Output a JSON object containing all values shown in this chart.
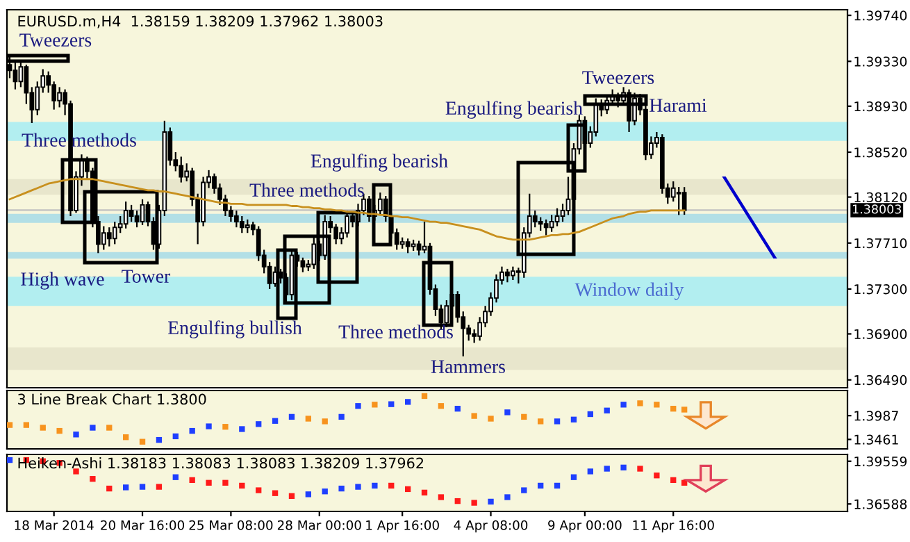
{
  "chart_data": [
    {
      "type": "candlestick",
      "title": "EURUSD.m,H4  1.38159 1.38209 1.37962 1.38003",
      "categories": [
        null,
        null,
        null,
        null,
        null,
        null,
        null,
        null,
        null,
        null,
        null,
        null,
        null,
        null,
        null,
        null,
        null,
        null,
        null,
        null,
        null,
        null,
        null,
        null,
        null,
        null,
        null,
        null,
        null,
        null,
        null,
        null,
        null,
        null,
        null,
        null,
        null,
        null,
        null,
        null,
        null,
        null,
        null,
        null,
        null,
        null,
        null,
        null,
        null,
        null,
        null,
        null,
        null,
        null,
        null,
        null,
        null,
        null,
        null,
        null,
        null,
        null,
        null,
        null,
        null,
        null,
        null,
        null,
        null,
        null,
        null,
        null,
        null,
        null,
        null,
        null,
        null,
        null,
        null,
        null,
        null,
        null,
        null,
        null,
        null,
        null,
        null,
        null,
        null,
        null,
        null,
        null,
        null,
        null,
        null,
        null,
        null,
        null,
        null,
        null,
        null,
        null,
        null,
        null,
        null,
        null,
        null,
        null,
        null,
        null,
        null,
        null,
        null,
        null,
        null,
        null,
        null,
        null,
        null,
        null,
        null,
        null,
        null,
        null,
        null,
        null,
        null,
        null,
        null,
        null,
        null,
        null,
        null,
        null,
        null,
        null,
        null,
        null,
        null,
        null,
        null,
        null,
        null,
        null,
        null,
        null,
        null,
        null,
        null,
        null,
        null,
        null
      ],
      "color": "#000000",
      "ohlc": [
        [
          1.393,
          1.3938,
          1.3918,
          1.3925
        ],
        [
          1.3925,
          1.3932,
          1.3908,
          1.3915
        ],
        [
          1.3915,
          1.3933,
          1.391,
          1.3928
        ],
        [
          1.3928,
          1.393,
          1.3895,
          1.3905
        ],
        [
          1.3905,
          1.391,
          1.3878,
          1.389
        ],
        [
          1.389,
          1.3915,
          1.3885,
          1.391
        ],
        [
          1.391,
          1.3926,
          1.3905,
          1.392
        ],
        [
          1.392,
          1.3924,
          1.3905,
          1.3912
        ],
        [
          1.3912,
          1.3915,
          1.389,
          1.3898
        ],
        [
          1.3898,
          1.391,
          1.3892,
          1.3905
        ],
        [
          1.3905,
          1.3908,
          1.3885,
          1.3895
        ],
        [
          1.3895,
          1.3898,
          1.3795,
          1.38
        ],
        [
          1.38,
          1.3835,
          1.3798,
          1.383
        ],
        [
          1.383,
          1.385,
          1.3822,
          1.3845
        ],
        [
          1.3845,
          1.3848,
          1.3828,
          1.3835
        ],
        [
          1.3835,
          1.3838,
          1.3785,
          1.379
        ],
        [
          1.379,
          1.3795,
          1.3762,
          1.377
        ],
        [
          1.377,
          1.3786,
          1.3765,
          1.378
        ],
        [
          1.378,
          1.3785,
          1.3768,
          1.3775
        ],
        [
          1.3775,
          1.379,
          1.377,
          1.3785
        ],
        [
          1.3785,
          1.3795,
          1.378,
          1.3788
        ],
        [
          1.3788,
          1.3808,
          1.3784,
          1.38
        ],
        [
          1.38,
          1.3805,
          1.379,
          1.3795
        ],
        [
          1.3795,
          1.38,
          1.3785,
          1.379
        ],
        [
          1.379,
          1.381,
          1.3787,
          1.3805
        ],
        [
          1.3805,
          1.3808,
          1.3786,
          1.379
        ],
        [
          1.379,
          1.3794,
          1.3765,
          1.377
        ],
        [
          1.377,
          1.3805,
          1.3766,
          1.38
        ],
        [
          1.38,
          1.388,
          1.3795,
          1.387
        ],
        [
          1.387,
          1.3874,
          1.384,
          1.3845
        ],
        [
          1.3845,
          1.3852,
          1.3835,
          1.384
        ],
        [
          1.384,
          1.3848,
          1.3825,
          1.383
        ],
        [
          1.383,
          1.3842,
          1.3826,
          1.3835
        ],
        [
          1.3835,
          1.3838,
          1.3804,
          1.381
        ],
        [
          1.381,
          1.3815,
          1.377,
          1.379
        ],
        [
          1.379,
          1.383,
          1.3786,
          1.3825
        ],
        [
          1.3825,
          1.3836,
          1.382,
          1.383
        ],
        [
          1.383,
          1.3833,
          1.3815,
          1.382
        ],
        [
          1.382,
          1.3824,
          1.3805,
          1.381
        ],
        [
          1.381,
          1.3814,
          1.3795,
          1.38
        ],
        [
          1.38,
          1.3804,
          1.379,
          1.3795
        ],
        [
          1.3795,
          1.38,
          1.3785,
          1.379
        ],
        [
          1.379,
          1.3795,
          1.378,
          1.3785
        ],
        [
          1.3785,
          1.3792,
          1.378,
          1.3787
        ],
        [
          1.3787,
          1.379,
          1.3778,
          1.3783
        ],
        [
          1.3783,
          1.3786,
          1.3755,
          1.376
        ],
        [
          1.376,
          1.3765,
          1.3744,
          1.375
        ],
        [
          1.375,
          1.3754,
          1.373,
          1.3735
        ],
        [
          1.3735,
          1.375,
          1.3732,
          1.3745
        ],
        [
          1.3745,
          1.3748,
          1.3735,
          1.374
        ],
        [
          1.374,
          1.3744,
          1.3718,
          1.3725
        ],
        [
          1.3725,
          1.3765,
          1.372,
          1.376
        ],
        [
          1.376,
          1.3763,
          1.375,
          1.3755
        ],
        [
          1.3755,
          1.3758,
          1.3745,
          1.375
        ],
        [
          1.375,
          1.3756,
          1.3746,
          1.3752
        ],
        [
          1.3752,
          1.3776,
          1.3748,
          1.377
        ],
        [
          1.377,
          1.3773,
          1.3755,
          1.376
        ],
        [
          1.376,
          1.3796,
          1.3756,
          1.379
        ],
        [
          1.379,
          1.3795,
          1.378,
          1.3785
        ],
        [
          1.3785,
          1.3788,
          1.377,
          1.3775
        ],
        [
          1.3775,
          1.3785,
          1.377,
          1.378
        ],
        [
          1.378,
          1.38,
          1.3776,
          1.3795
        ],
        [
          1.3795,
          1.3798,
          1.3785,
          1.379
        ],
        [
          1.379,
          1.3806,
          1.3786,
          1.38
        ],
        [
          1.38,
          1.3815,
          1.3796,
          1.381
        ],
        [
          1.381,
          1.3813,
          1.379,
          1.3795
        ],
        [
          1.3795,
          1.3805,
          1.3791,
          1.38
        ],
        [
          1.38,
          1.3816,
          1.3796,
          1.381
        ],
        [
          1.381,
          1.3813,
          1.379,
          1.3795
        ],
        [
          1.3795,
          1.3798,
          1.3775,
          1.378
        ],
        [
          1.378,
          1.3784,
          1.3765,
          1.377
        ],
        [
          1.377,
          1.3776,
          1.3766,
          1.3772
        ],
        [
          1.3772,
          1.3775,
          1.3762,
          1.3768
        ],
        [
          1.3768,
          1.3774,
          1.3764,
          1.377
        ],
        [
          1.377,
          1.3773,
          1.376,
          1.3765
        ],
        [
          1.3765,
          1.379,
          1.3762,
          1.3768
        ],
        [
          1.3768,
          1.3771,
          1.3725,
          1.373
        ],
        [
          1.373,
          1.3734,
          1.3706,
          1.3712
        ],
        [
          1.3712,
          1.3716,
          1.3694,
          1.37
        ],
        [
          1.37,
          1.372,
          1.3696,
          1.3715
        ],
        [
          1.3715,
          1.373,
          1.371,
          1.3725
        ],
        [
          1.3725,
          1.3728,
          1.37,
          1.3705
        ],
        [
          1.3705,
          1.371,
          1.367,
          1.3695
        ],
        [
          1.3695,
          1.3698,
          1.3684,
          1.369
        ],
        [
          1.369,
          1.3694,
          1.3682,
          1.3688
        ],
        [
          1.3688,
          1.3705,
          1.3684,
          1.37
        ],
        [
          1.37,
          1.3715,
          1.3696,
          1.371
        ],
        [
          1.371,
          1.3727,
          1.3706,
          1.3722
        ],
        [
          1.3722,
          1.3743,
          1.3718,
          1.3738
        ],
        [
          1.3738,
          1.375,
          1.3734,
          1.3745
        ],
        [
          1.3745,
          1.3748,
          1.3736,
          1.3742
        ],
        [
          1.3742,
          1.375,
          1.3738,
          1.3746
        ],
        [
          1.3746,
          1.3749,
          1.3735,
          1.3745
        ],
        [
          1.3745,
          1.3785,
          1.374,
          1.378
        ],
        [
          1.378,
          1.3815,
          1.3776,
          1.3795
        ],
        [
          1.3795,
          1.38,
          1.3785,
          1.379
        ],
        [
          1.379,
          1.3794,
          1.3782,
          1.3788
        ],
        [
          1.3788,
          1.3792,
          1.3778,
          1.3785
        ],
        [
          1.3785,
          1.3796,
          1.3781,
          1.379
        ],
        [
          1.379,
          1.3802,
          1.3786,
          1.3795
        ],
        [
          1.3795,
          1.3806,
          1.379,
          1.38
        ],
        [
          1.38,
          1.383,
          1.3796,
          1.381
        ],
        [
          1.381,
          1.386,
          1.3806,
          1.3855
        ],
        [
          1.3855,
          1.3885,
          1.385,
          1.388
        ],
        [
          1.388,
          1.3884,
          1.3855,
          1.386
        ],
        [
          1.386,
          1.3875,
          1.3856,
          1.387
        ],
        [
          1.387,
          1.39,
          1.3866,
          1.3895
        ],
        [
          1.3895,
          1.3899,
          1.3884,
          1.389
        ],
        [
          1.389,
          1.3903,
          1.3886,
          1.3898
        ],
        [
          1.3898,
          1.3908,
          1.3894,
          1.3902
        ],
        [
          1.3902,
          1.3905,
          1.3892,
          1.3898
        ],
        [
          1.3898,
          1.391,
          1.3894,
          1.3905
        ],
        [
          1.3905,
          1.3908,
          1.387,
          1.388
        ],
        [
          1.388,
          1.3905,
          1.3876,
          1.39
        ],
        [
          1.39,
          1.3904,
          1.3885,
          1.389
        ],
        [
          1.389,
          1.3894,
          1.3845,
          1.385
        ],
        [
          1.385,
          1.3866,
          1.3846,
          1.386
        ],
        [
          1.386,
          1.387,
          1.3856,
          1.3865
        ],
        [
          1.3865,
          1.3868,
          1.3815,
          1.382
        ],
        [
          1.382,
          1.3824,
          1.3806,
          1.3812
        ],
        [
          1.3812,
          1.3826,
          1.3808,
          1.382
        ],
        [
          1.3815,
          1.3821,
          1.3796,
          1.3816
        ],
        [
          1.38159,
          1.38209,
          1.37962,
          1.38003
        ],
        null,
        null,
        null,
        null,
        null,
        null,
        null,
        null,
        null,
        null,
        null,
        null,
        null,
        null,
        null,
        null,
        null,
        null,
        null,
        null,
        null,
        null,
        null,
        null,
        null,
        null,
        null,
        null,
        null
      ],
      "series": [
        {
          "type": "line",
          "color": "#c8901e",
          "values": [
            1.381,
            1.3812,
            1.3814,
            1.3816,
            1.3818,
            1.382,
            1.3822,
            1.3824,
            1.3825,
            1.3826,
            1.3827,
            1.3828,
            1.3828,
            1.3828,
            1.3828,
            1.3828,
            1.3827,
            1.3826,
            1.3825,
            1.3824,
            1.3823,
            1.3822,
            1.3821,
            1.382,
            1.3819,
            1.3818,
            1.3818,
            1.3817,
            1.3817,
            1.3816,
            1.3815,
            1.3814,
            1.3813,
            1.3812,
            1.3811,
            1.381,
            1.3809,
            1.3808,
            1.3807,
            1.3807,
            1.3806,
            1.3806,
            1.3806,
            1.3805,
            1.3805,
            1.3805,
            1.3805,
            1.3805,
            1.3805,
            1.3805,
            1.3805,
            1.3804,
            1.3804,
            1.3803,
            1.3803,
            1.3802,
            1.3802,
            1.3801,
            1.3801,
            1.38,
            1.38,
            1.3799,
            1.3799,
            1.3798,
            1.3798,
            1.3797,
            1.3797,
            1.3796,
            1.3796,
            1.3795,
            1.3795,
            1.3794,
            1.3794,
            1.3793,
            1.3792,
            1.3791,
            1.379,
            1.379,
            1.3789,
            1.3789,
            1.3788,
            1.3787,
            1.3786,
            1.3785,
            1.3784,
            1.3783,
            1.3781,
            1.3779,
            1.3777,
            1.3776,
            1.3775,
            1.3774,
            1.3774,
            1.3774,
            1.3774,
            1.3775,
            1.3776,
            1.3777,
            1.3778,
            1.3778,
            1.3779,
            1.3779,
            1.378,
            1.3781,
            1.3783,
            1.3785,
            1.3787,
            1.3789,
            1.3791,
            1.3793,
            1.3794,
            1.3795,
            1.3797,
            1.3798,
            1.3799,
            1.3799,
            1.38,
            1.38,
            1.38,
            1.38,
            1.38,
            1.38,
            1.38,
            null,
            null,
            null,
            null,
            null,
            null,
            null,
            null,
            null,
            null,
            null,
            null,
            null,
            null,
            null,
            null,
            null,
            null,
            null,
            null,
            null,
            null,
            null,
            null,
            null,
            null,
            null,
            null,
            null
          ]
        }
      ],
      "ylim": [
        1.3642,
        1.3979
      ],
      "yticks": [
        {
          "value": 1.3974,
          "label": "1.39740"
        },
        {
          "value": 1.3933,
          "label": "1.39330"
        },
        {
          "value": 1.3893,
          "label": "1.38930"
        },
        {
          "value": 1.3852,
          "label": "1.38520"
        },
        {
          "value": 1.3812,
          "label": "1.38120"
        },
        {
          "value": 1.3771,
          "label": "1.37710"
        },
        {
          "value": 1.373,
          "label": "1.37300"
        },
        {
          "value": 1.369,
          "label": "1.36900"
        },
        {
          "value": 1.3649,
          "label": "1.36490"
        }
      ],
      "bands": [
        {
          "axis": "y",
          "from": 1.3814,
          "to": 1.3828,
          "color": "#e8e6cc"
        },
        {
          "axis": "y",
          "from": 1.3658,
          "to": 1.3678,
          "color": "#e8e6cc"
        },
        {
          "axis": "y",
          "from": 1.3789,
          "to": 1.3797,
          "color": "#b2dfe6"
        },
        {
          "axis": "y",
          "from": 1.3757,
          "to": 1.3763,
          "color": "#b2dfe6"
        },
        {
          "axis": "y",
          "from": 1.3715,
          "to": 1.3741,
          "color": "#b2eef0",
          "label": "Window daily"
        },
        {
          "axis": "y",
          "from": 1.3862,
          "to": 1.3879,
          "color": "#b2eef0"
        }
      ],
      "ref_lines": [
        {
          "axis": "y",
          "value": 1.38003,
          "label": "1.38003",
          "color": "#c0c0c0"
        }
      ],
      "annotations": [
        "Tweezers",
        "Three methods",
        "High wave",
        "Tower",
        "Engulfing bullish",
        "Three methods",
        "Engulfing bearish",
        "Three methods",
        "Hammers",
        "Engulfing bearish",
        "Tweezers",
        "Harami"
      ],
      "tick_labels": "y"
    },
    {
      "type": "scatter",
      "title": "3 Line Break Chart 1.3800",
      "categories": [
        null,
        null,
        null,
        null,
        null,
        null,
        null,
        null,
        null,
        null,
        null,
        null,
        null,
        null,
        null,
        null,
        null,
        null,
        null,
        null,
        null,
        null,
        null,
        null,
        null,
        null,
        null,
        null,
        null,
        null,
        null,
        null,
        null,
        null,
        null,
        null,
        null,
        null,
        null,
        null,
        null,
        null,
        null,
        null,
        null,
        null,
        null,
        null,
        null,
        null,
        null,
        null,
        null,
        null,
        null,
        null,
        null,
        null,
        null,
        null,
        null,
        null,
        null,
        null,
        null,
        null,
        null,
        null,
        null,
        null,
        null,
        null,
        null,
        null,
        null,
        null,
        null,
        null,
        null,
        null,
        null,
        null,
        null,
        null,
        null,
        null,
        null,
        null,
        null,
        null,
        null,
        null,
        null,
        null,
        null,
        null,
        null,
        null,
        null,
        null,
        null,
        null,
        null,
        null,
        null,
        null,
        null,
        null,
        null,
        null,
        null,
        null,
        null,
        null,
        null,
        null,
        null,
        null,
        null,
        null,
        null,
        null,
        null,
        null,
        null,
        null,
        null,
        null,
        null,
        null,
        null,
        null,
        null,
        null,
        null,
        null,
        null,
        null,
        null,
        null,
        null,
        null,
        null,
        null,
        null,
        null,
        null,
        null,
        null,
        null,
        null,
        null
      ],
      "marker": "square",
      "series": [
        {
          "values": [
            1.378,
            null,
            null,
            1.378,
            null,
            null,
            1.372,
            null,
            null,
            1.365,
            null,
            null,
            1.357,
            null,
            null,
            1.372,
            null,
            null,
            1.372,
            null,
            null,
            1.351,
            null,
            null,
            1.341,
            null,
            null,
            1.345,
            null,
            null,
            1.353,
            null,
            null,
            1.365,
            null,
            null,
            1.375,
            null,
            null,
            1.374,
            null,
            null,
            1.369,
            null,
            null,
            1.38,
            null,
            null,
            1.387,
            null,
            null,
            1.396,
            null,
            null,
            1.392,
            null,
            null,
            1.386,
            null,
            null,
            1.396,
            null,
            null,
            1.42,
            null,
            null,
            1.423,
            null,
            null,
            1.424,
            null,
            null,
            1.429,
            null,
            null,
            1.442,
            null,
            null,
            1.42,
            null,
            null,
            1.414,
            null,
            null,
            1.398,
            null,
            null,
            1.392,
            null,
            null,
            1.406,
            null,
            null,
            1.396,
            null,
            null,
            1.386,
            null,
            null,
            1.386,
            null,
            null,
            1.39,
            null,
            null,
            1.402,
            null,
            null,
            1.41,
            null,
            null,
            1.423,
            null,
            null,
            1.426,
            null,
            null,
            1.423,
            null,
            null,
            1.414,
            null,
            1.412,
            null,
            null,
            null,
            null,
            null,
            null,
            null,
            null,
            null,
            null,
            null,
            null,
            null,
            null,
            null,
            null,
            null,
            null,
            null,
            null,
            null,
            null,
            null,
            null,
            null,
            null,
            null,
            null,
            null
          ],
          "colors": [
            "#f7931e",
            null,
            null,
            "#f7931e",
            null,
            null,
            "#f7931e",
            null,
            null,
            "#f7931e",
            null,
            null,
            "#1f3fff",
            null,
            null,
            "#1f3fff",
            null,
            null,
            "#f7931e",
            null,
            null,
            "#f7931e",
            null,
            null,
            "#f7931e",
            null,
            null,
            "#1f3fff",
            null,
            null,
            "#1f3fff",
            null,
            null,
            "#1f3fff",
            null,
            null,
            "#1f3fff",
            null,
            null,
            "#f7931e",
            null,
            null,
            "#1f3fff",
            null,
            null,
            "#1f3fff",
            null,
            null,
            "#1f3fff",
            null,
            null,
            "#1f3fff",
            null,
            null,
            "#f7931e",
            null,
            null,
            "#f7931e",
            null,
            null,
            "#1f3fff",
            null,
            null,
            "#1f3fff",
            null,
            null,
            "#f7931e",
            null,
            null,
            "#1f3fff",
            null,
            null,
            "#1f3fff",
            null,
            null,
            "#f7931e",
            null,
            null,
            "#f7931e",
            null,
            null,
            "#1f3fff",
            null,
            null,
            "#f7931e",
            null,
            null,
            "#f7931e",
            null,
            null,
            "#1f3fff",
            null,
            null,
            "#f7931e",
            null,
            null,
            "#f7931e",
            null,
            null,
            "#1f3fff",
            null,
            null,
            "#1f3fff",
            null,
            null,
            "#1f3fff",
            null,
            null,
            "#1f3fff",
            null,
            null,
            "#1f3fff",
            null,
            null,
            "#f7931e",
            null,
            null,
            "#f7931e",
            null,
            null,
            "#f7931e",
            null,
            "#f7931e",
            null,
            null,
            null,
            null,
            null,
            null,
            null,
            null,
            null,
            null,
            null,
            null,
            null,
            null,
            null,
            null,
            null,
            null,
            null,
            null,
            null,
            null,
            null,
            null,
            null,
            null,
            null,
            null,
            null
          ]
        }
      ],
      "ylim": [
        1.3252,
        1.4542
      ],
      "yticks": [
        1.3987,
        1.3461
      ],
      "tick_labels": "y"
    },
    {
      "type": "scatter",
      "title": "Heiken-Ashi 1.38183 1.38083 1.38083 1.38209 1.37962",
      "categories": [
        null,
        null,
        null,
        null,
        null,
        null,
        null,
        null,
        "18 Mar 2014",
        null,
        null,
        null,
        null,
        null,
        null,
        null,
        null,
        null,
        null,
        null,
        null,
        null,
        null,
        null,
        "20 Mar 16:00",
        null,
        null,
        null,
        null,
        null,
        null,
        null,
        null,
        null,
        null,
        null,
        null,
        null,
        null,
        null,
        "25 Mar 08:00",
        null,
        null,
        null,
        null,
        null,
        null,
        null,
        null,
        null,
        null,
        null,
        null,
        null,
        null,
        null,
        "28 Mar 00:00",
        null,
        null,
        null,
        null,
        null,
        null,
        null,
        null,
        null,
        null,
        null,
        null,
        null,
        null,
        "1 Apr 16:00",
        null,
        null,
        null,
        null,
        null,
        null,
        null,
        null,
        null,
        null,
        null,
        null,
        null,
        null,
        null,
        "4 Apr 08:00",
        null,
        null,
        null,
        null,
        null,
        null,
        null,
        null,
        null,
        null,
        null,
        null,
        null,
        null,
        null,
        null,
        "9 Apr 00:00",
        null,
        null,
        null,
        null,
        null,
        null,
        null,
        null,
        null,
        null,
        null,
        null,
        null,
        null,
        null,
        "11 Apr 16:00",
        null,
        null,
        null,
        null,
        null,
        null,
        null,
        null,
        null,
        null,
        null,
        null,
        null,
        null,
        null,
        null,
        null,
        null,
        null,
        null,
        null,
        null,
        null,
        null,
        null,
        null,
        null,
        null,
        null,
        null,
        null
      ],
      "marker": "square",
      "series": [
        {
          "values": [
            1.3964,
            null,
            null,
            1.3964,
            null,
            null,
            1.3956,
            null,
            null,
            1.3944,
            null,
            null,
            1.3885,
            null,
            null,
            1.3833,
            null,
            null,
            1.3766,
            null,
            null,
            1.3774,
            null,
            null,
            1.3778,
            null,
            null,
            1.3778,
            null,
            null,
            1.3845,
            null,
            null,
            1.3825,
            null,
            null,
            1.3806,
            null,
            null,
            1.3806,
            null,
            null,
            1.3786,
            null,
            null,
            1.3754,
            null,
            null,
            1.3734,
            null,
            null,
            1.3714,
            null,
            null,
            1.3726,
            null,
            null,
            1.3746,
            null,
            null,
            1.3766,
            null,
            null,
            1.3778,
            null,
            null,
            1.3786,
            null,
            null,
            1.3786,
            null,
            null,
            1.3762,
            null,
            null,
            1.3738,
            null,
            null,
            1.3706,
            null,
            null,
            1.3679,
            null,
            null,
            1.3667,
            null,
            null,
            1.3675,
            null,
            null,
            1.3706,
            null,
            null,
            1.3754,
            null,
            null,
            1.3786,
            null,
            null,
            1.3786,
            null,
            null,
            1.3845,
            null,
            null,
            1.3885,
            null,
            null,
            1.3904,
            null,
            null,
            1.3912,
            null,
            null,
            1.3904,
            null,
            null,
            1.3857,
            null,
            null,
            1.3825,
            null,
            1.3806,
            null,
            null,
            null,
            null,
            null,
            null,
            null,
            null,
            null,
            null,
            null,
            null,
            null,
            null,
            null,
            null,
            null,
            null,
            null,
            null,
            null,
            null,
            null,
            null,
            null,
            null,
            null,
            null,
            null
          ],
          "colors": [
            "#1f3fff",
            null,
            null,
            "#ff1a1a",
            null,
            null,
            "#ff1a1a",
            null,
            null,
            "#ff1a1a",
            null,
            null,
            "#ff1a1a",
            null,
            null,
            "#ff1a1a",
            null,
            null,
            "#ff1a1a",
            null,
            null,
            "#1f3fff",
            null,
            null,
            "#1f3fff",
            null,
            null,
            "#ff1a1a",
            null,
            null,
            "#1f3fff",
            null,
            null,
            "#ff1a1a",
            null,
            null,
            "#ff1a1a",
            null,
            null,
            "#ff1a1a",
            null,
            null,
            "#ff1a1a",
            null,
            null,
            "#ff1a1a",
            null,
            null,
            "#ff1a1a",
            null,
            null,
            "#ff1a1a",
            null,
            null,
            "#1f3fff",
            null,
            null,
            "#1f3fff",
            null,
            null,
            "#1f3fff",
            null,
            null,
            "#1f3fff",
            null,
            null,
            "#1f3fff",
            null,
            null,
            "#ff1a1a",
            null,
            null,
            "#ff1a1a",
            null,
            null,
            "#ff1a1a",
            null,
            null,
            "#ff1a1a",
            null,
            null,
            "#ff1a1a",
            null,
            null,
            "#ff1a1a",
            null,
            null,
            "#1f3fff",
            null,
            null,
            "#1f3fff",
            null,
            null,
            "#1f3fff",
            null,
            null,
            "#1f3fff",
            null,
            null,
            "#1f3fff",
            null,
            null,
            "#1f3fff",
            null,
            null,
            "#1f3fff",
            null,
            null,
            "#1f3fff",
            null,
            null,
            "#1f3fff",
            null,
            null,
            "#ff1a1a",
            null,
            null,
            "#ff1a1a",
            null,
            null,
            "#ff1a1a",
            null,
            "#ff1a1a",
            null,
            null,
            null,
            null,
            null,
            null,
            null,
            null,
            null,
            null,
            null,
            null,
            null,
            null,
            null,
            null,
            null,
            null,
            null,
            null,
            null,
            null,
            null,
            null,
            null,
            null,
            null,
            null,
            null
          ]
        }
      ],
      "ylim": [
        1.3607,
        1.4003
      ],
      "yticks": [
        1.39559,
        1.36588
      ]
    }
  ]
}
